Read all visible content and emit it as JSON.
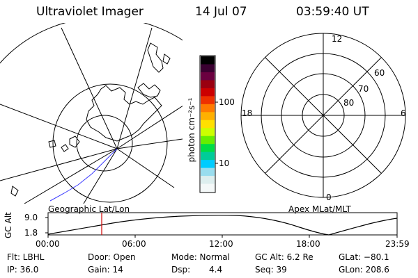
{
  "header": {
    "title": "Ultraviolet Imager",
    "date": "14 Jul 07",
    "time": "03:59:40 UT"
  },
  "colorbar": {
    "unit_label": "photon cm⁻²s⁻¹",
    "tick_100": "100",
    "tick_10": "10",
    "scale": "log",
    "colors": [
      "#000000",
      "#3a0030",
      "#6b0040",
      "#9a0010",
      "#cc0000",
      "#ee3000",
      "#ff7a00",
      "#ffb000",
      "#ffe000",
      "#ccff00",
      "#66ee00",
      "#00dd44",
      "#00cc99",
      "#00ccff",
      "#99ddee",
      "#ddeeee",
      "#f4f8f8"
    ]
  },
  "left_panel": {
    "label": "Geographic Lat/Lon"
  },
  "right_panel": {
    "label": "Apex MLat/MLT",
    "mlt_12": "12",
    "mlt_18": "18",
    "mlt_6": "6",
    "mlt_0": "0",
    "lat_60": "60",
    "lat_70": "70",
    "lat_80": "80"
  },
  "altitude_plot": {
    "ylabel": "GC Alt",
    "ytick_high": "9.0",
    "ytick_low": "1.8",
    "xticks": [
      "00:00",
      "06:00",
      "12:00",
      "18:00",
      "23:59"
    ],
    "marker_time": "03:59:40"
  },
  "info": {
    "flt": "Flt: LBHL",
    "ip": "IP: 36.0",
    "door": "Door: Open",
    "gain": "Gain: 14",
    "mode": "Mode: Normal",
    "dsp_label": "Dsp:",
    "dsp_value": "4.4",
    "gcalt": "GC Alt: 6.2 Re",
    "seq": "Seq: 39",
    "glat": "GLat: −80.1",
    "glon": "GLon: 208.6"
  }
}
